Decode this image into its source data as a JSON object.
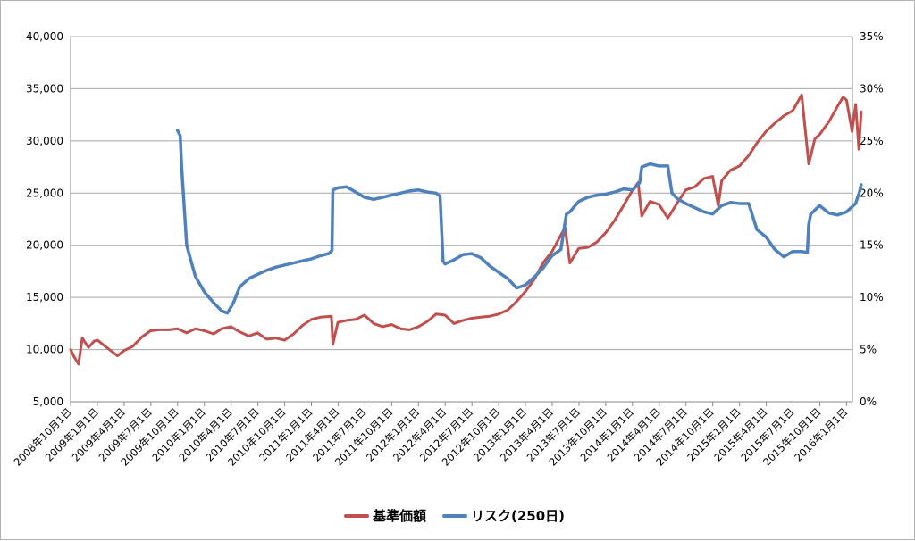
{
  "chart_data": {
    "type": "line",
    "title": "",
    "x_labels": [
      "2008年10月1日",
      "2009年1月1日",
      "2009年4月1日",
      "2009年7月1日",
      "2009年10月1日",
      "2010年1月1日",
      "2010年4月1日",
      "2010年7月1日",
      "2010年10月1日",
      "2011年1月1日",
      "2011年4月1日",
      "2011年7月1日",
      "2011年10月1日",
      "2012年1月1日",
      "2012年4月1日",
      "2012年7月1日",
      "2012年10月1日",
      "2013年1月1日",
      "2013年4月1日",
      "2013年7月1日",
      "2013年10月1日",
      "2014年1月1日",
      "2014年4月1日",
      "2014年7月1日",
      "2014年10月1日",
      "2015年1月1日",
      "2015年4月1日",
      "2015年7月1日",
      "2015年10月1日",
      "2016年1月1日"
    ],
    "y_left": {
      "min": 5000,
      "max": 40000,
      "step": 5000,
      "ticks": [
        "5,000",
        "10,000",
        "15,000",
        "20,000",
        "25,000",
        "30,000",
        "35,000",
        "40,000"
      ]
    },
    "y_right": {
      "min": 0,
      "max": 35,
      "step": 5,
      "ticks": [
        "0%",
        "5%",
        "10%",
        "15%",
        "20%",
        "25%",
        "30%",
        "35%"
      ]
    },
    "grid": true,
    "legend_position": "bottom",
    "series": [
      {
        "name": "基準価額",
        "axis": "left",
        "color": "#c0504d",
        "points": [
          [
            "2008年10月1日",
            10000
          ],
          [
            "2008年10月15日",
            9200
          ],
          [
            "2008年10月28日",
            8600
          ],
          [
            "2008年11月10日",
            11100
          ],
          [
            "2008年12月1日",
            10200
          ],
          [
            "2008年12月20日",
            10800
          ],
          [
            "2009年1月1日",
            10900
          ],
          [
            "2009年2月1日",
            10200
          ],
          [
            "2009年3月10日",
            9400
          ],
          [
            "2009年4月1日",
            9900
          ],
          [
            "2009年5月1日",
            10300
          ],
          [
            "2009年6月1日",
            11200
          ],
          [
            "2009年7月1日",
            11800
          ],
          [
            "2009年8月1日",
            11900
          ],
          [
            "2009年9月1日",
            11900
          ],
          [
            "2009年10月1日",
            12000
          ],
          [
            "2009年11月1日",
            11600
          ],
          [
            "2009年12月1日",
            12000
          ],
          [
            "2010年1月1日",
            11800
          ],
          [
            "2010年2月1日",
            11500
          ],
          [
            "2010年3月1日",
            12000
          ],
          [
            "2010年4月1日",
            12200
          ],
          [
            "2010年5月1日",
            11700
          ],
          [
            "2010年6月1日",
            11300
          ],
          [
            "2010年7月1日",
            11600
          ],
          [
            "2010年8月1日",
            11000
          ],
          [
            "2010年9月1日",
            11100
          ],
          [
            "2010年10月1日",
            10900
          ],
          [
            "2010年11月1日",
            11500
          ],
          [
            "2010年12月1日",
            12300
          ],
          [
            "2011年1月1日",
            12900
          ],
          [
            "2011年2月1日",
            13100
          ],
          [
            "2011年3月10日",
            13200
          ],
          [
            "2011年3月15日",
            10500
          ],
          [
            "2011年4月1日",
            12600
          ],
          [
            "2011年5月1日",
            12800
          ],
          [
            "2011年6月1日",
            12900
          ],
          [
            "2011年7月1日",
            13300
          ],
          [
            "2011年8月1日",
            12500
          ],
          [
            "2011年9月1日",
            12200
          ],
          [
            "2011年10月1日",
            12400
          ],
          [
            "2011年11月1日",
            12000
          ],
          [
            "2011年12月1日",
            11900
          ],
          [
            "2012年1月1日",
            12200
          ],
          [
            "2012年2月1日",
            12700
          ],
          [
            "2012年3月1日",
            13400
          ],
          [
            "2012年4月1日",
            13300
          ],
          [
            "2012年5月1日",
            12500
          ],
          [
            "2012年6月1日",
            12800
          ],
          [
            "2012年7月1日",
            13000
          ],
          [
            "2012年8月1日",
            13100
          ],
          [
            "2012年9月1日",
            13200
          ],
          [
            "2012年10月1日",
            13400
          ],
          [
            "2012年11月1日",
            13800
          ],
          [
            "2012年12月1日",
            14600
          ],
          [
            "2013年1月1日",
            15600
          ],
          [
            "2013年2月1日",
            16800
          ],
          [
            "2013年3月1日",
            18300
          ],
          [
            "2013年4月1日",
            19400
          ],
          [
            "2013年5月15日",
            21700
          ],
          [
            "2013年6月1日",
            18300
          ],
          [
            "2013年7月1日",
            19700
          ],
          [
            "2013年8月1日",
            19800
          ],
          [
            "2013年9月1日",
            20300
          ],
          [
            "2013年10月1日",
            21200
          ],
          [
            "2013年11月1日",
            22400
          ],
          [
            "2013年12月1日",
            23800
          ],
          [
            "2014年1月1日",
            25300
          ],
          [
            "2014年1月20日",
            26000
          ],
          [
            "2014年2月1日",
            22800
          ],
          [
            "2014年3月1日",
            24200
          ],
          [
            "2014年4月1日",
            23900
          ],
          [
            "2014年5月1日",
            22600
          ],
          [
            "2014年6月1日",
            24000
          ],
          [
            "2014年7月1日",
            25300
          ],
          [
            "2014年8月1日",
            25600
          ],
          [
            "2014年9月1日",
            26400
          ],
          [
            "2014年10月1日",
            26600
          ],
          [
            "2014年10月20日",
            23800
          ],
          [
            "2014年11月1日",
            26200
          ],
          [
            "2014年12月1日",
            27200
          ],
          [
            "2015年1月1日",
            27600
          ],
          [
            "2015年2月1日",
            28600
          ],
          [
            "2015年3月1日",
            29800
          ],
          [
            "2015年4月1日",
            30900
          ],
          [
            "2015年5月1日",
            31700
          ],
          [
            "2015年6月1日",
            32400
          ],
          [
            "2015年7月1日",
            32900
          ],
          [
            "2015年8月1日",
            34400
          ],
          [
            "2015年8月25日",
            27800
          ],
          [
            "2015年9月15日",
            30200
          ],
          [
            "2015年10月1日",
            30600
          ],
          [
            "2015年11月1日",
            31800
          ],
          [
            "2015年12月1日",
            33300
          ],
          [
            "2015年12月20日",
            34200
          ],
          [
            "2016年1月1日",
            33900
          ],
          [
            "2016年1月20日",
            30900
          ],
          [
            "2016年2月1日",
            33500
          ],
          [
            "2016年2月12日",
            29200
          ],
          [
            "2016年2月20日",
            32800
          ]
        ]
      },
      {
        "name": "リスク(250日)",
        "axis": "right",
        "color": "#4f81bd",
        "points": [
          [
            "2009年10月1日",
            26.0
          ],
          [
            "2009年10月10日",
            25.5
          ],
          [
            "2009年10月15日",
            22.5
          ],
          [
            "2009年11月1日",
            15.0
          ],
          [
            "2009年12月1日",
            12.0
          ],
          [
            "2010年1月1日",
            10.5
          ],
          [
            "2010年2月1日",
            9.5
          ],
          [
            "2010年3月1日",
            8.7
          ],
          [
            "2010年3月20日",
            8.5
          ],
          [
            "2010年4月10日",
            9.5
          ],
          [
            "2010年5月1日",
            11.0
          ],
          [
            "2010年6月1日",
            11.8
          ],
          [
            "2010年7月1日",
            12.2
          ],
          [
            "2010年8月1日",
            12.6
          ],
          [
            "2010年9月1日",
            12.9
          ],
          [
            "2010年10月1日",
            13.1
          ],
          [
            "2010年11月1日",
            13.3
          ],
          [
            "2010年12月1日",
            13.5
          ],
          [
            "2011年1月1日",
            13.7
          ],
          [
            "2011年2月1日",
            14.0
          ],
          [
            "2011年3月1日",
            14.2
          ],
          [
            "2011年3月12日",
            14.5
          ],
          [
            "2011年3月15日",
            20.3
          ],
          [
            "2011年4月1日",
            20.5
          ],
          [
            "2011年5月1日",
            20.6
          ],
          [
            "2011年6月1日",
            20.1
          ],
          [
            "2011年7月1日",
            19.6
          ],
          [
            "2011年8月1日",
            19.4
          ],
          [
            "2011年9月1日",
            19.6
          ],
          [
            "2011年10月1日",
            19.8
          ],
          [
            "2011年11月1日",
            20.0
          ],
          [
            "2011年12月1日",
            20.2
          ],
          [
            "2012年1月1日",
            20.3
          ],
          [
            "2012年2月1日",
            20.1
          ],
          [
            "2012年3月1日",
            20.0
          ],
          [
            "2012年3月15日",
            19.7
          ],
          [
            "2012年3月25日",
            13.5
          ],
          [
            "2012年4月1日",
            13.2
          ],
          [
            "2012年5月1日",
            13.6
          ],
          [
            "2012年6月1日",
            14.1
          ],
          [
            "2012年7月1日",
            14.2
          ],
          [
            "2012年8月1日",
            13.8
          ],
          [
            "2012年9月1日",
            13.0
          ],
          [
            "2012年10月1日",
            12.4
          ],
          [
            "2012年11月1日",
            11.8
          ],
          [
            "2012年12月1日",
            10.9
          ],
          [
            "2013年1月1日",
            11.2
          ],
          [
            "2013年2月1日",
            12.0
          ],
          [
            "2013年3月1日",
            12.8
          ],
          [
            "2013年4月1日",
            14.0
          ],
          [
            "2013年5月1日",
            14.6
          ],
          [
            "2013年5月20日",
            18.0
          ],
          [
            "2013年6月1日",
            18.2
          ],
          [
            "2013年7月1日",
            19.2
          ],
          [
            "2013年8月1日",
            19.6
          ],
          [
            "2013年9月1日",
            19.8
          ],
          [
            "2013年10月1日",
            19.9
          ],
          [
            "2013年11月1日",
            20.1
          ],
          [
            "2013年12月1日",
            20.4
          ],
          [
            "2014年1月1日",
            20.3
          ],
          [
            "2014年1月25日",
            21.0
          ],
          [
            "2014年2月1日",
            22.5
          ],
          [
            "2014年3月1日",
            22.8
          ],
          [
            "2014年4月1日",
            22.6
          ],
          [
            "2014年5月1日",
            22.6
          ],
          [
            "2014年5月15日",
            20.0
          ],
          [
            "2014年6月1日",
            19.5
          ],
          [
            "2014年7月1日",
            19.0
          ],
          [
            "2014年8月1日",
            18.6
          ],
          [
            "2014年9月1日",
            18.2
          ],
          [
            "2014年10月1日",
            18.0
          ],
          [
            "2014年11月1日",
            18.8
          ],
          [
            "2014年12月1日",
            19.1
          ],
          [
            "2015年1月1日",
            19.0
          ],
          [
            "2015年2月1日",
            19.0
          ],
          [
            "2015年3月1日",
            16.5
          ],
          [
            "2015年4月1日",
            15.8
          ],
          [
            "2015年5月1日",
            14.6
          ],
          [
            "2015年6月1日",
            13.9
          ],
          [
            "2015年7月1日",
            14.4
          ],
          [
            "2015年8月1日",
            14.4
          ],
          [
            "2015年8月20日",
            14.3
          ],
          [
            "2015年8月25日",
            17.0
          ],
          [
            "2015年9月1日",
            18.0
          ],
          [
            "2015年10月1日",
            18.8
          ],
          [
            "2015年11月1日",
            18.1
          ],
          [
            "2015年12月1日",
            17.9
          ],
          [
            "2016年1月1日",
            18.2
          ],
          [
            "2016年2月1日",
            19.0
          ],
          [
            "2016年2月15日",
            20.2
          ],
          [
            "2016年2月20日",
            20.8
          ]
        ]
      }
    ]
  }
}
